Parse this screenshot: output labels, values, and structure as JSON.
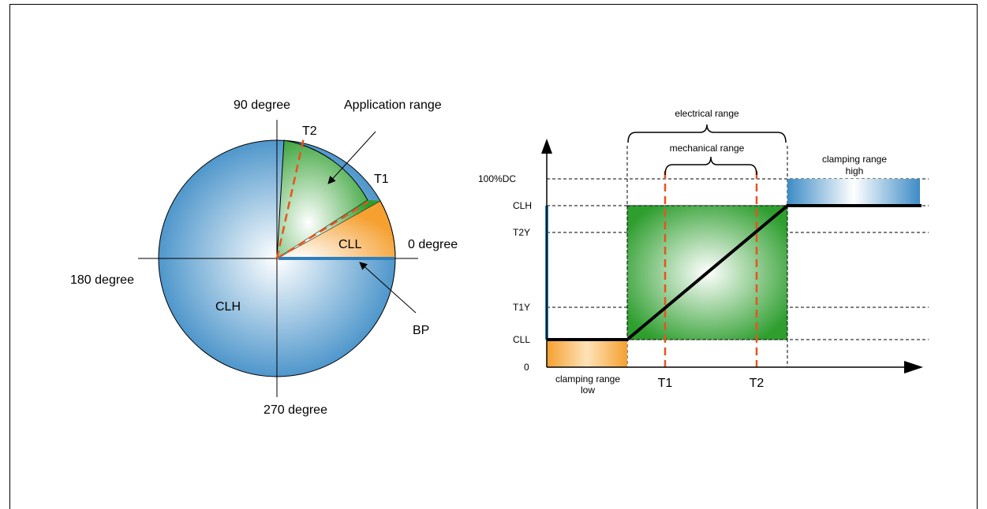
{
  "left_diagram": {
    "angle_labels": {
      "deg_90": "90 degree",
      "deg_0": "0 degree",
      "deg_180": "180 degree",
      "deg_270": "270 degree"
    },
    "application_range": "Application range",
    "t1": "T1",
    "t2": "T2",
    "cll": "CLL",
    "clh": "CLH",
    "bp": "BP"
  },
  "right_diagram": {
    "electrical_range": "electrical range",
    "mechanical_range": "mechanical range",
    "clamping_high": [
      "clamping range",
      "high"
    ],
    "clamping_low": [
      "clamping range",
      "low"
    ],
    "y_ticks": {
      "dc100": "100%DC",
      "clh": "CLH",
      "t2y": "T2Y",
      "t1y": "T1Y",
      "cll": "CLL",
      "zero": "0"
    },
    "x_ticks": {
      "t1": "T1",
      "t2": "T2"
    }
  },
  "colors": {
    "blue": "#2f7fbd",
    "green": "#2e9e2e",
    "orange": "#f5a030",
    "dash_orange": "#e8531e",
    "line": "#000000"
  }
}
